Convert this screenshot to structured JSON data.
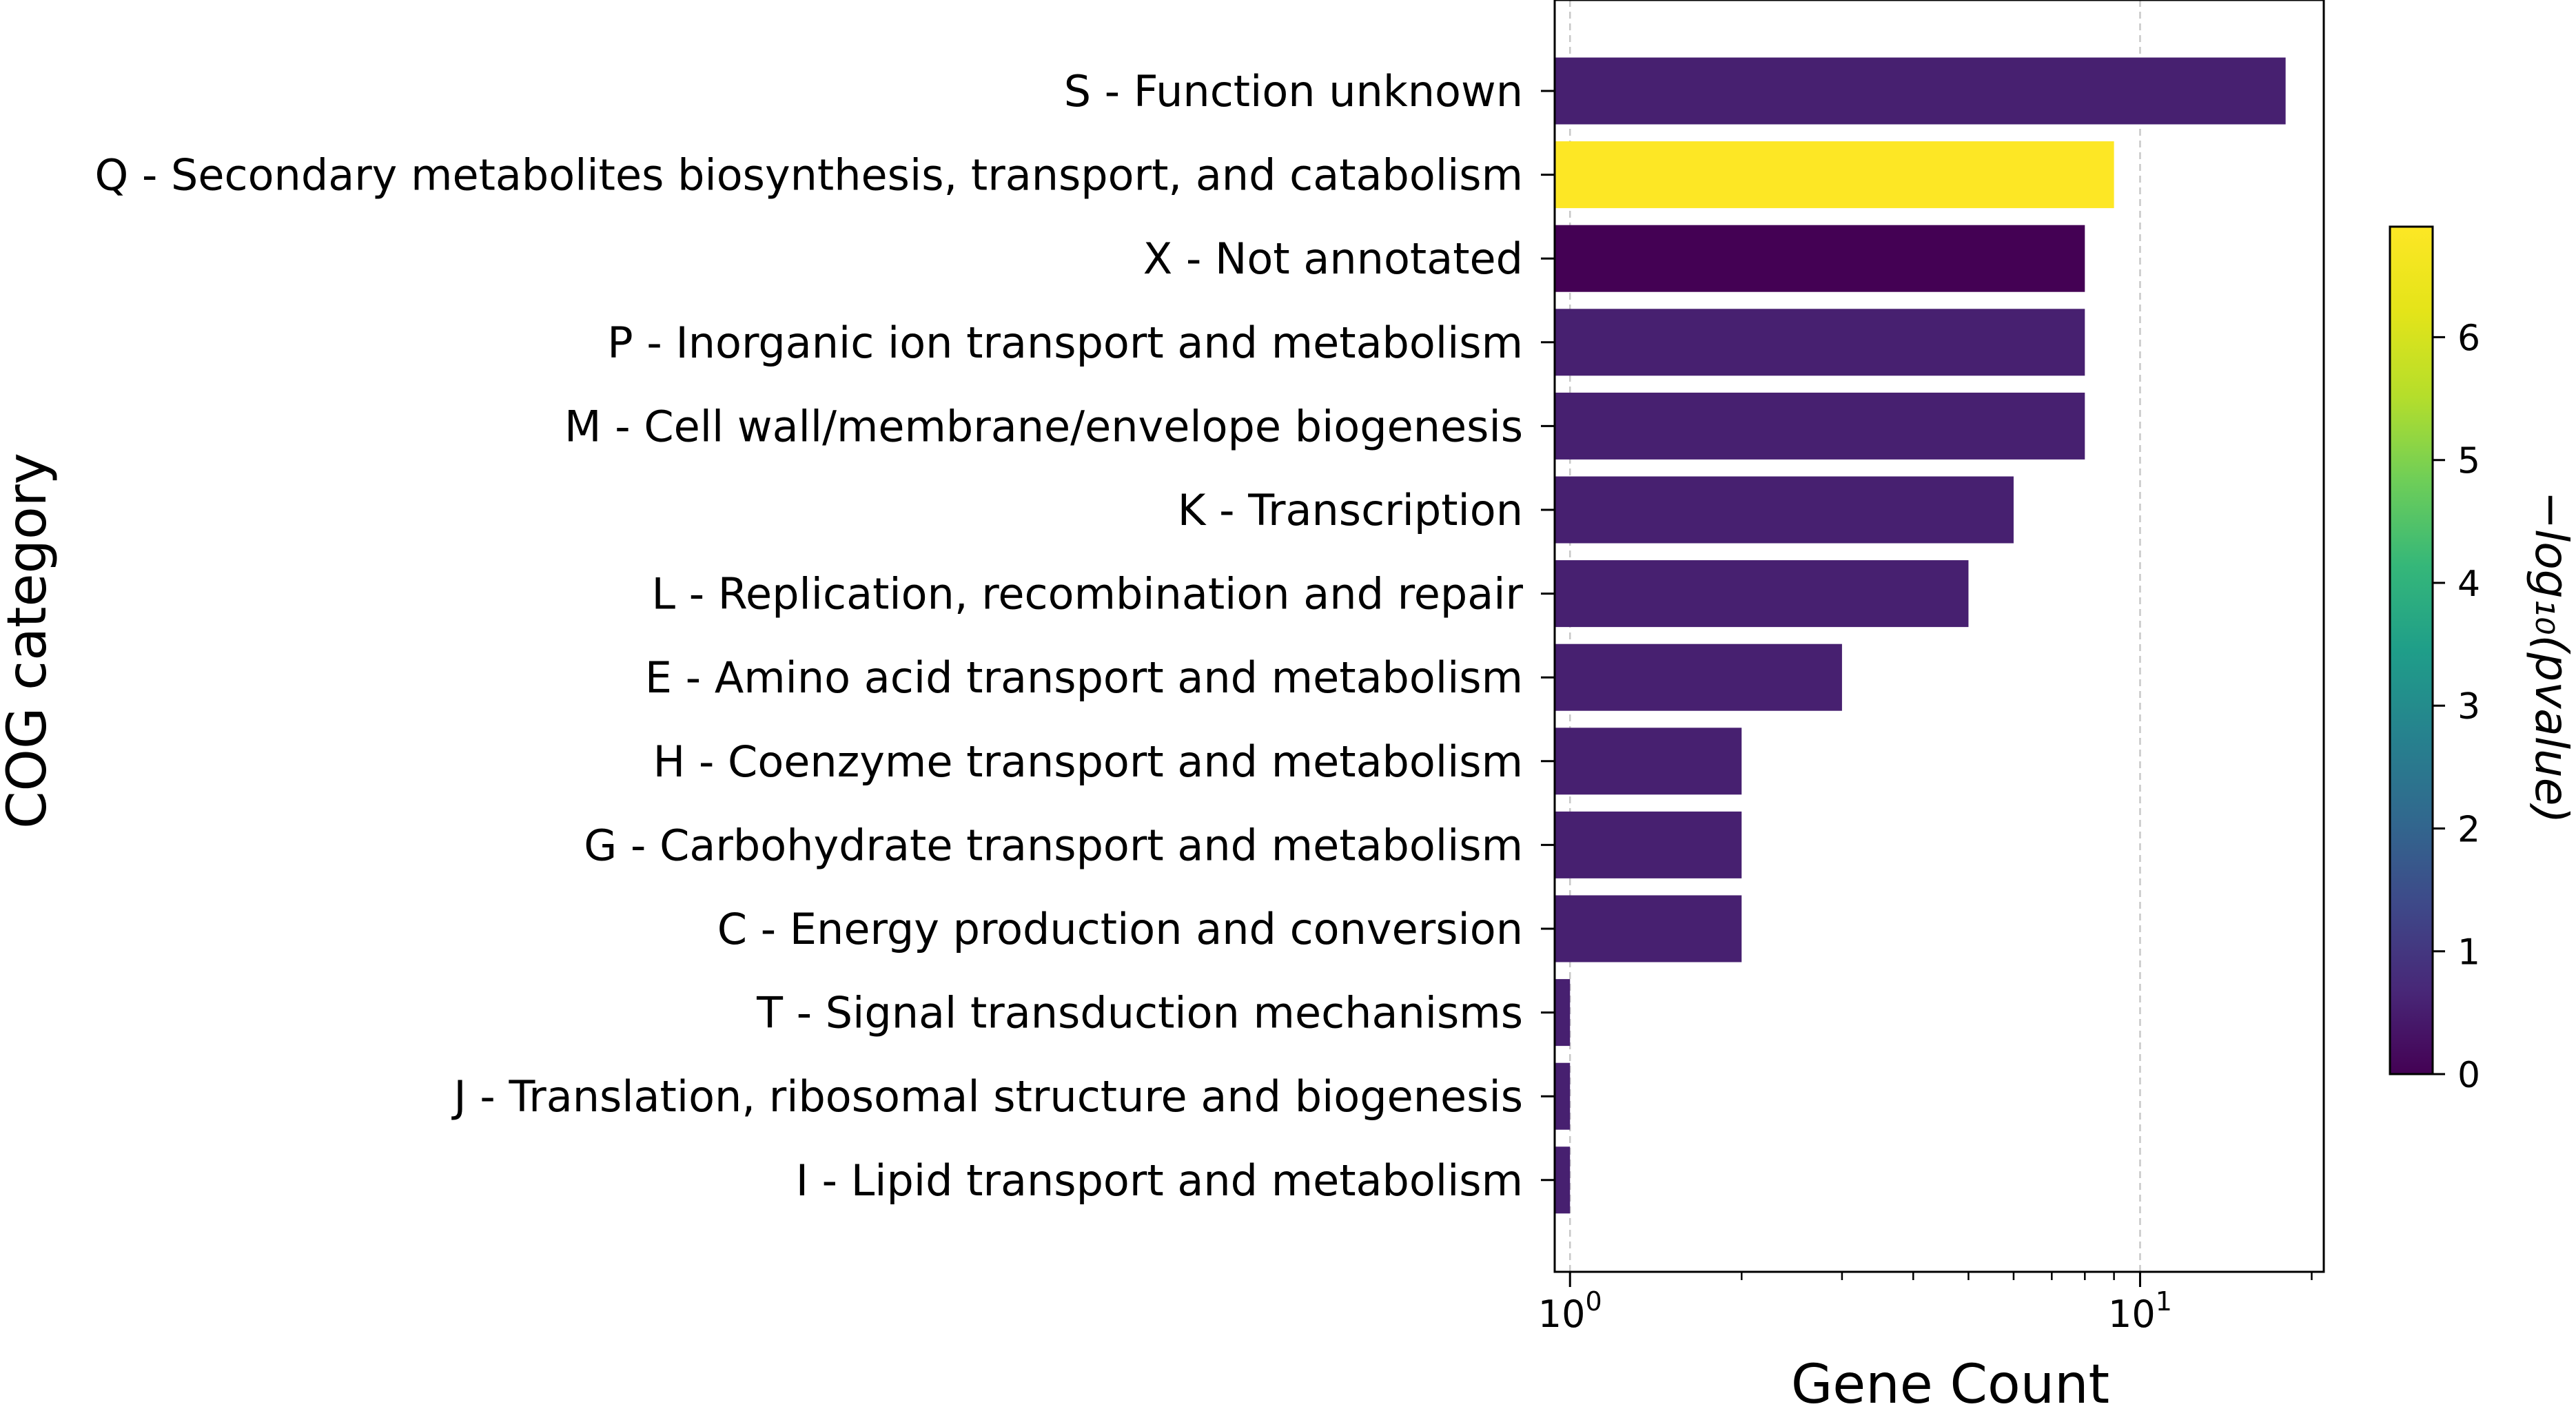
{
  "chart_data": {
    "type": "bar",
    "orientation": "horizontal",
    "xscale": "log",
    "xlim": [
      0.94,
      21
    ],
    "xlabel": "Gene Count",
    "ylabel": "COG category",
    "xticks": [
      {
        "base": "10",
        "exp": "0",
        "value": 1
      },
      {
        "base": "10",
        "exp": "1",
        "value": 10
      }
    ],
    "grid": "vertical dashed at major ticks",
    "categories": [
      "S - Function unknown",
      "Q - Secondary metabolites biosynthesis, transport, and catabolism",
      "X - Not annotated",
      "P - Inorganic ion transport and metabolism",
      "M - Cell wall/membrane/envelope biogenesis",
      "K - Transcription",
      "L - Replication, recombination and repair",
      "E - Amino acid transport and metabolism",
      "H - Coenzyme transport and metabolism",
      "G - Carbohydrate transport and metabolism",
      "C - Energy production and conversion",
      "T - Signal transduction mechanisms",
      "J - Translation, ribosomal structure and biogenesis",
      "I - Lipid transport and metabolism"
    ],
    "values": [
      18,
      9,
      8,
      8,
      8,
      6,
      5,
      3,
      2,
      2,
      2,
      1,
      1,
      1
    ],
    "neg_log10_pvalue": [
      0.6,
      6.9,
      0.0,
      0.6,
      0.6,
      0.6,
      0.6,
      0.6,
      0.6,
      0.6,
      0.6,
      0.6,
      0.6,
      0.6
    ],
    "colorbar": {
      "title": "−log₁₀(pvalue)",
      "colormap": "viridis",
      "range": [
        0,
        6.9
      ],
      "ticks": [
        "0",
        "1",
        "2",
        "3",
        "4",
        "5",
        "6"
      ],
      "placement": "right"
    }
  }
}
